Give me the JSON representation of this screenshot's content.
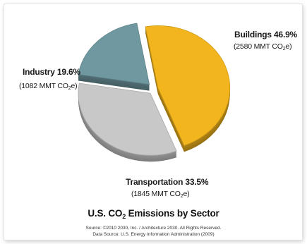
{
  "chart_data": {
    "type": "pie",
    "title_prefix": "U.S. CO",
    "title_sub": "2",
    "title_suffix": " Emissions by Sector",
    "value_prefix": "(",
    "value_unit_pre": " MMT CO",
    "value_unit_sub": "2",
    "value_unit_post": "e)",
    "slices": [
      {
        "name": "Buildings",
        "percent": "46.9%",
        "label": "Buildings 46.9%",
        "value": 2580,
        "color": "#f2b51d"
      },
      {
        "name": "Transportation",
        "percent": "33.5%",
        "label": "Transportation 33.5%",
        "value": 1845,
        "color": "#c8c8c8"
      },
      {
        "name": "Industry",
        "percent": "19.6%",
        "label": "Industry 19.6%",
        "value": 1082,
        "color": "#6f98a0"
      }
    ],
    "source_line1": "Source: ©2010 2030, Inc. / Architecture 2030. All Rights Reserved.",
    "source_line2": "Data Source: U.S. Energy Information Administration (2009)"
  }
}
